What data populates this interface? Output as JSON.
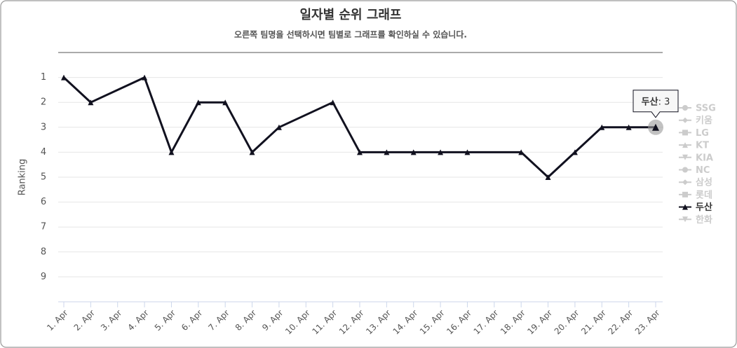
{
  "chart_data": {
    "type": "line",
    "title": "일자별 순위 그래프",
    "subtitle": "오른쪽 팀명을 선택하시면 팀별로 그래프를 확인하실 수 있습니다.",
    "y_axis_label": "Ranking",
    "categories": [
      "1. Apr",
      "2. Apr",
      "3. Apr",
      "4. Apr",
      "5. Apr",
      "6. Apr",
      "7. Apr",
      "8. Apr",
      "9. Apr",
      "10. Apr",
      "11. Apr",
      "12. Apr",
      "13. Apr",
      "14. Apr",
      "15. Apr",
      "16. Apr",
      "17. Apr",
      "18. Apr",
      "19. Apr",
      "20. Apr",
      "21. Apr",
      "22. Apr",
      "23. Apr"
    ],
    "ylim": [
      0,
      10
    ],
    "y_reversed": true,
    "yticks": [
      1,
      2,
      3,
      4,
      5,
      6,
      7,
      8,
      9
    ],
    "grid": true,
    "connect_nulls": true,
    "legend_position": "right",
    "hidden_color": "#cccccc",
    "series": [
      {
        "name": "SSG",
        "marker": "circle",
        "visible": false
      },
      {
        "name": "키움",
        "marker": "diamond",
        "visible": false
      },
      {
        "name": "LG",
        "marker": "square",
        "visible": false
      },
      {
        "name": "KT",
        "marker": "triangle",
        "visible": false
      },
      {
        "name": "KIA",
        "marker": "triangle-down",
        "visible": false
      },
      {
        "name": "NC",
        "marker": "circle",
        "visible": false
      },
      {
        "name": "삼성",
        "marker": "diamond",
        "visible": false
      },
      {
        "name": "롯데",
        "marker": "square",
        "visible": false
      },
      {
        "name": "두산",
        "marker": "triangle",
        "visible": true,
        "color": "#11111f",
        "values": [
          1,
          2,
          null,
          1,
          4,
          2,
          2,
          4,
          3,
          null,
          2,
          4,
          4,
          4,
          4,
          4,
          null,
          4,
          5,
          4,
          3,
          3,
          3
        ]
      },
      {
        "name": "한화",
        "marker": "triangle-down",
        "visible": false
      }
    ],
    "tooltip": {
      "series": 8,
      "index": 22
    }
  }
}
